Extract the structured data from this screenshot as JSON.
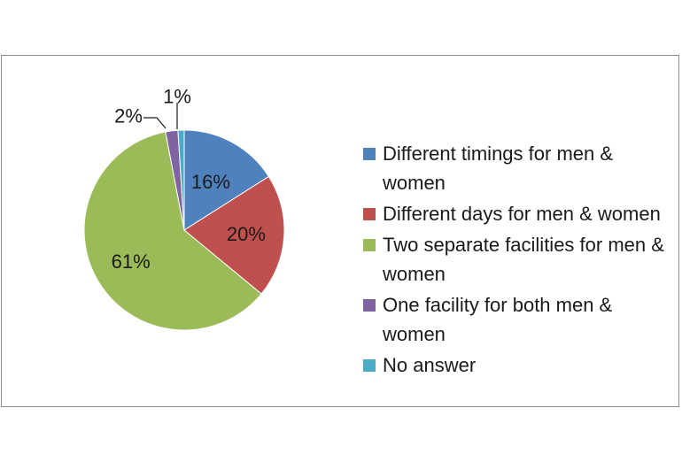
{
  "chart_data": {
    "type": "pie",
    "title": "",
    "slices": [
      {
        "label": "Different timings for men & women",
        "value": 16,
        "data_label": "16%",
        "color": "#4F81BD"
      },
      {
        "label": "Different days for men & women",
        "value": 20,
        "data_label": "20%",
        "color": "#C0504D"
      },
      {
        "label": "Two separate facilities for men & women",
        "value": 61,
        "data_label": "61%",
        "color": "#9BBB59"
      },
      {
        "label": "One facility for both men & women",
        "value": 2,
        "data_label": "2%",
        "color": "#8064A2"
      },
      {
        "label": "No answer",
        "value": 1,
        "data_label": "1%",
        "color": "#4BACC6"
      }
    ],
    "start_angle_deg": 0,
    "direction": "clockwise",
    "legend_position": "right"
  },
  "legend": {
    "items": [
      {
        "label": "Different timings for men & women",
        "color": "#4F81BD"
      },
      {
        "label": "Different days for men & women",
        "color": "#C0504D"
      },
      {
        "label": "Two separate facilities for men & women",
        "color": "#9BBB59"
      },
      {
        "label": "One facility for both men & women",
        "color": "#8064A2"
      },
      {
        "label": "No answer",
        "color": "#4BACC6"
      }
    ]
  }
}
